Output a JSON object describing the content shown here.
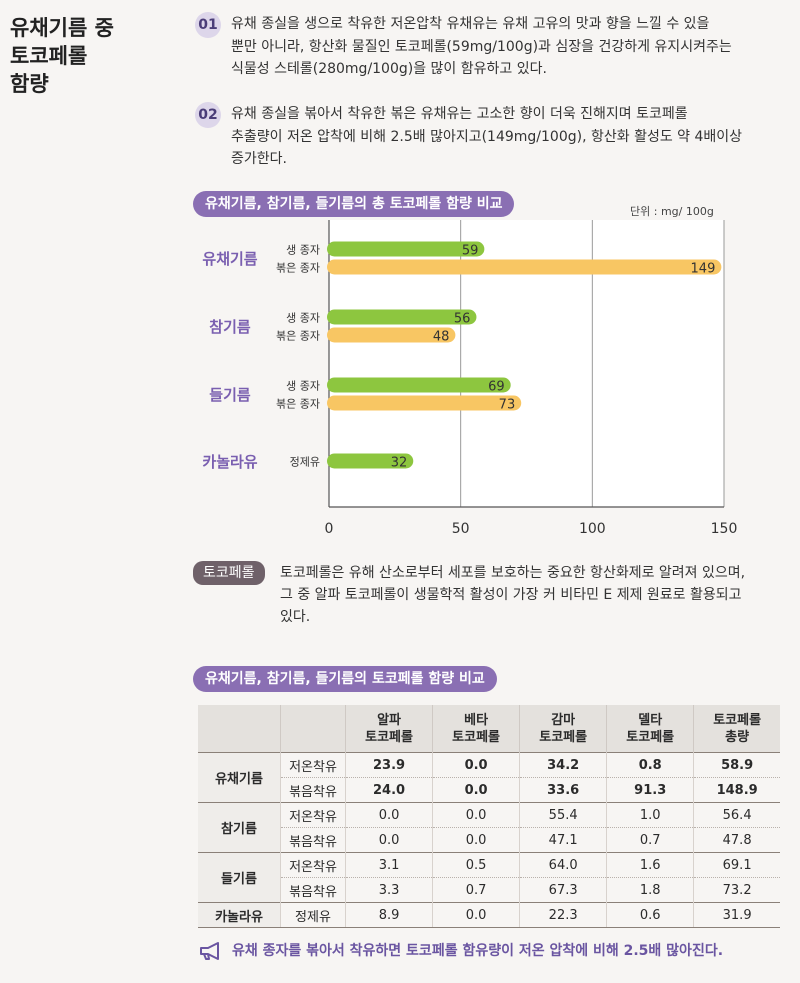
{
  "title_lines": [
    "유채기름 중",
    "토코페롤",
    "함량"
  ],
  "points": [
    {
      "num": "01",
      "lines": [
        "유채 종실을 생으로 착유한 저온압착 유채유는 유채 고유의 맛과 향을 느낄 수 있을",
        "뿐만 아니라, 항산화 물질인 토코페롤(59mg/100g)과 심장을 건강하게 유지시켜주는",
        "식물성 스테롤(280mg/100g)을 많이 함유하고 있다."
      ]
    },
    {
      "num": "02",
      "lines": [
        "유채 종실을 볶아서 착유한 볶은 유채유는 고소한 향이 더욱 진해지며 토코페롤",
        "추출량이 저온 압착에 비해 2.5배 많아지고(149mg/100g), 항산화 활성도 약 4배이상",
        "증가한다."
      ]
    }
  ],
  "chart_data": {
    "type": "bar",
    "orientation": "horizontal",
    "title": "유채기름, 참기름, 들기름의 총 토코페롤 함량 비교",
    "unit": "단위 : mg/ 100g",
    "xlim": [
      0,
      150
    ],
    "xticks": [
      0,
      50,
      100,
      150
    ],
    "grid": true,
    "groups": [
      {
        "name": "유채기름",
        "bars": [
          {
            "label": "생 종자",
            "value": 59,
            "color": "#8dc63f"
          },
          {
            "label": "볶은 종자",
            "value": 149,
            "color": "#f8c663"
          }
        ]
      },
      {
        "name": "참기름",
        "bars": [
          {
            "label": "생 종자",
            "value": 56,
            "color": "#8dc63f"
          },
          {
            "label": "볶은 종자",
            "value": 48,
            "color": "#f8c663"
          }
        ]
      },
      {
        "name": "들기름",
        "bars": [
          {
            "label": "생 종자",
            "value": 69,
            "color": "#8dc63f"
          },
          {
            "label": "볶은 종자",
            "value": 73,
            "color": "#f8c663"
          }
        ]
      },
      {
        "name": "카놀라유",
        "bars": [
          {
            "label": "정제유",
            "value": 32,
            "color": "#8dc63f"
          }
        ]
      }
    ]
  },
  "note": {
    "tag": "토코페롤",
    "lines": [
      "토코페롤은 유해 산소로부터 세포를 보호하는 중요한 항산화제로 알려져 있으며,",
      "그 중 알파 토코페롤이 생물학적 활성이 가장 커 비타민 E 제제 원료로 활용되고",
      "있다."
    ]
  },
  "table": {
    "title": "유채기름, 참기름, 들기름의 토코페롤 함량 비교",
    "headers": [
      [
        "알파",
        "토코페롤"
      ],
      [
        "베타",
        "토코페롤"
      ],
      [
        "감마",
        "토코페롤"
      ],
      [
        "델타",
        "토코페롤"
      ],
      [
        "토코페롤",
        "총량"
      ]
    ],
    "groups": [
      {
        "name": "유채기름",
        "bold": true,
        "rows": [
          {
            "method": "저온착유",
            "values": [
              "23.9",
              "0.0",
              "34.2",
              "0.8",
              "58.9"
            ]
          },
          {
            "method": "볶음착유",
            "values": [
              "24.0",
              "0.0",
              "33.6",
              "91.3",
              "148.9"
            ]
          }
        ]
      },
      {
        "name": "참기름",
        "bold": false,
        "rows": [
          {
            "method": "저온착유",
            "values": [
              "0.0",
              "0.0",
              "55.4",
              "1.0",
              "56.4"
            ]
          },
          {
            "method": "볶음착유",
            "values": [
              "0.0",
              "0.0",
              "47.1",
              "0.7",
              "47.8"
            ]
          }
        ]
      },
      {
        "name": "들기름",
        "bold": false,
        "rows": [
          {
            "method": "저온착유",
            "values": [
              "3.1",
              "0.5",
              "64.0",
              "1.6",
              "69.1"
            ]
          },
          {
            "method": "볶음착유",
            "values": [
              "3.3",
              "0.7",
              "67.3",
              "1.8",
              "73.2"
            ]
          }
        ]
      },
      {
        "name": "카놀라유",
        "bold": false,
        "rows": [
          {
            "method": "정제유",
            "values": [
              "8.9",
              "0.0",
              "22.3",
              "0.6",
              "31.9"
            ]
          }
        ]
      }
    ]
  },
  "footer": {
    "icon": "megaphone-icon",
    "text": "유채 종자를 볶아서 착유하면 토코페롤 함유량이 저온 압착에 비해 2.5배 많아진다."
  },
  "colors": {
    "accent": "#8a6fb3",
    "group_label": "#7a5fb0",
    "raw_bar": "#8dc63f",
    "roasted_bar": "#f8c663"
  }
}
